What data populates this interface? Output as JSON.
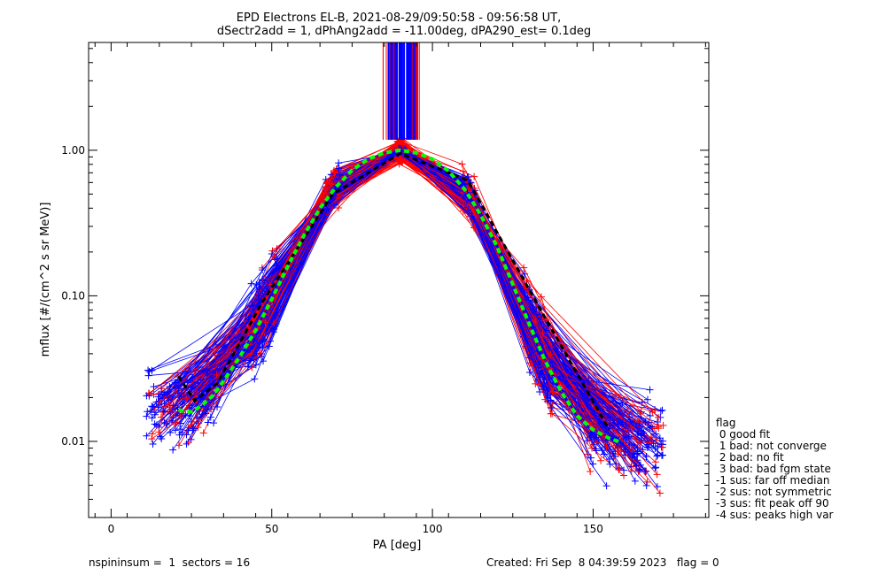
{
  "chart_data": {
    "type": "line",
    "title": "EPD Electrons EL-B, 2021-08-29/09:50:58 - 09:56:58 UT,",
    "subtitle": "dSectr2add = 1, dPhAng2add = -11.00deg, dPA290_est=   0.1deg",
    "xlabel": "PA [deg]",
    "ylabel": "mflux [#/(cm^2 s sr MeV)]",
    "xlim": [
      -7,
      186
    ],
    "ylim": [
      0.003,
      5.5
    ],
    "yscale": "log",
    "x_ticks": [
      {
        "value": 0,
        "label": "0"
      },
      {
        "value": 50,
        "label": "50"
      },
      {
        "value": 100,
        "label": "100"
      },
      {
        "value": 150,
        "label": "150"
      }
    ],
    "y_ticks": [
      {
        "value": 0.01,
        "label": "0.01"
      },
      {
        "value": 0.1,
        "label": "0.10"
      },
      {
        "value": 1.0,
        "label": "1.00"
      }
    ],
    "grid": false,
    "legend_position": "right",
    "colors": {
      "good": "#0000ff",
      "bad": "#ff0000",
      "median": "#000000",
      "fit": "#00ff00"
    },
    "series": [
      {
        "role": "median",
        "x": [
          21,
          26,
          33,
          47,
          69,
          90,
          111,
          133,
          155
        ],
        "y": [
          0.028,
          0.019,
          0.025,
          0.09,
          0.5,
          0.95,
          0.62,
          0.085,
          0.012
        ]
      },
      {
        "role": "fit",
        "x": [
          21,
          23,
          25,
          28,
          32,
          36,
          40,
          45,
          50,
          55,
          60,
          65,
          70,
          75,
          80,
          85,
          90,
          95,
          100,
          105,
          110,
          115,
          120,
          125,
          130,
          135,
          140,
          145,
          150,
          155,
          159
        ],
        "y": [
          0.0165,
          0.016,
          0.016,
          0.0175,
          0.021,
          0.028,
          0.038,
          0.058,
          0.095,
          0.16,
          0.26,
          0.4,
          0.56,
          0.73,
          0.87,
          0.96,
          1.0,
          0.96,
          0.87,
          0.72,
          0.54,
          0.36,
          0.22,
          0.12,
          0.065,
          0.036,
          0.022,
          0.015,
          0.012,
          0.0105,
          0.0098
        ]
      }
    ],
    "legend": {
      "title": "flag",
      "entries": [
        " 0 good fit",
        " 1 bad: not converge",
        " 2 bad: no fit",
        " 3 bad: bad fgm state",
        "-1 sus: far off median",
        "-2 sus: not symmetric",
        "-3 sus: fit peak off 90",
        "-4 sus: peaks high var"
      ]
    },
    "footer": {
      "left": "nspininsum =  1  sectors = 16",
      "right": "Created: Fri Sep  8 04:39:59 2023   flag = 0"
    }
  }
}
